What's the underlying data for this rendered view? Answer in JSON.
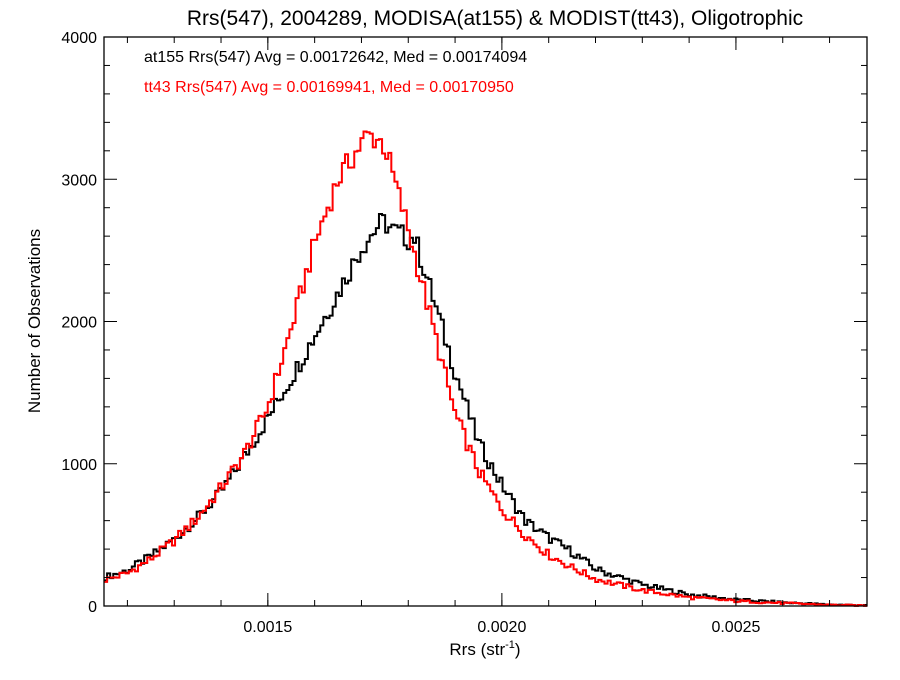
{
  "chart_data": {
    "type": "line",
    "step": true,
    "title": "Rrs(547), 2004289, MODISA(at155) & MODIST(tt43), Oligotrophic",
    "xlabel": "Rrs (str",
    "xlabel_sup": "-1",
    "xlabel_close": ")",
    "ylabel": "Number of Observations",
    "xlim": [
      0.00115,
      0.00278
    ],
    "ylim": [
      0,
      4000
    ],
    "xticks": [
      0.0015,
      0.002,
      0.0025
    ],
    "xtick_labels": [
      "0.0015",
      "0.0020",
      "0.0025"
    ],
    "yticks": [
      0,
      1000,
      2000,
      3000,
      4000
    ],
    "ytick_labels": [
      "0",
      "1000",
      "2000",
      "3000",
      "4000"
    ],
    "grid": false,
    "annotations": [
      {
        "text": "at155 Rrs(547) Avg = 0.00172642, Med = 0.00174094",
        "color": "#000000"
      },
      {
        "text": "tt43 Rrs(547) Avg = 0.00169941, Med = 0.00170950",
        "color": "#ff0000"
      }
    ],
    "series": [
      {
        "color": "#000000",
        "x": [
          0.00115,
          0.0012,
          0.00125,
          0.0013,
          0.00135,
          0.0014,
          0.00145,
          0.0015,
          0.00155,
          0.0016,
          0.00165,
          0.0017,
          0.0017375,
          0.00175,
          0.0017625,
          0.00178,
          0.0018,
          0.0018125,
          0.00185,
          0.0019,
          0.00195,
          0.002,
          0.00205,
          0.0021,
          0.00215,
          0.0022,
          0.0023,
          0.0024,
          0.0025,
          0.0026,
          0.0027,
          0.00278
        ],
        "y": [
          200,
          250,
          350,
          470,
          620,
          800,
          1050,
          1320,
          1600,
          1900,
          2200,
          2520,
          2680,
          2700,
          2650,
          2620,
          2580,
          2600,
          2200,
          1650,
          1150,
          850,
          600,
          480,
          380,
          260,
          150,
          80,
          45,
          25,
          10,
          5
        ]
      },
      {
        "color": "#ff0000",
        "x": [
          0.00115,
          0.0012,
          0.00125,
          0.0013,
          0.00135,
          0.0014,
          0.00145,
          0.0015,
          0.00155,
          0.0016,
          0.00165,
          0.0017,
          0.0017125,
          0.0017375,
          0.00175,
          0.0018,
          0.00185,
          0.0019,
          0.00195,
          0.002,
          0.00205,
          0.0021,
          0.00215,
          0.0022,
          0.0023,
          0.0024,
          0.0025,
          0.0026,
          0.0027,
          0.00278
        ],
        "y": [
          180,
          230,
          330,
          460,
          620,
          830,
          1070,
          1400,
          1950,
          2550,
          3000,
          3250,
          3310,
          3280,
          3230,
          2650,
          2000,
          1350,
          950,
          680,
          500,
          360,
          270,
          190,
          110,
          60,
          35,
          20,
          8,
          3
        ]
      }
    ]
  }
}
